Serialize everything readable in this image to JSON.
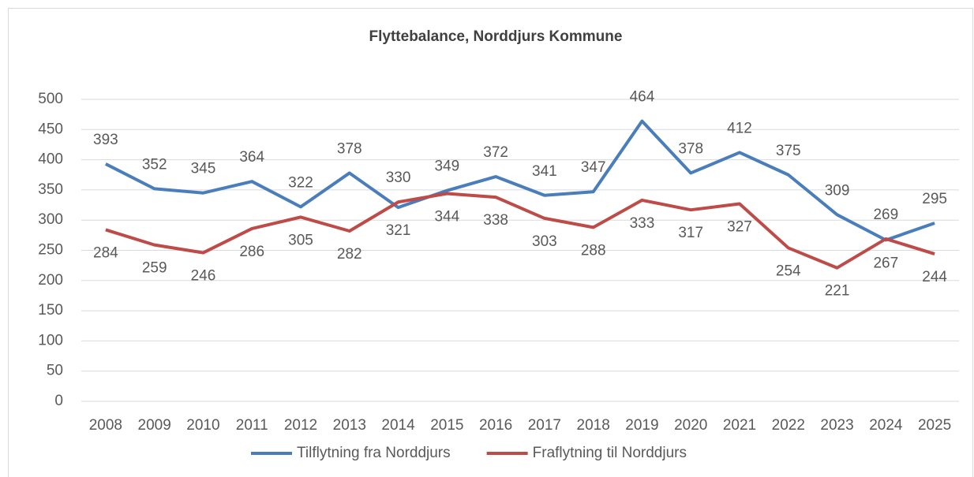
{
  "chart_data": {
    "type": "line",
    "title": "Flyttebalance, Norddjurs Kommune",
    "categories": [
      "2008",
      "2009",
      "2010",
      "2011",
      "2012",
      "2013",
      "2014",
      "2015",
      "2016",
      "2017",
      "2018",
      "2019",
      "2020",
      "2021",
      "2022",
      "2023",
      "2024",
      "2025"
    ],
    "series": [
      {
        "name": "Tilflytning fra Norddjurs",
        "color": "#4a7ebb",
        "values": [
          393,
          352,
          345,
          364,
          322,
          378,
          321,
          349,
          372,
          341,
          347,
          464,
          378,
          412,
          375,
          309,
          267,
          295
        ]
      },
      {
        "name": "Fraflytning til Norddjurs",
        "color": "#be4b48",
        "values": [
          284,
          259,
          246,
          286,
          305,
          282,
          330,
          344,
          338,
          303,
          288,
          333,
          317,
          327,
          254,
          221,
          269,
          244
        ]
      }
    ],
    "ylim": [
      0,
      500
    ],
    "yticks": [
      0,
      50,
      100,
      150,
      200,
      250,
      300,
      350,
      400,
      450,
      500
    ],
    "grid": true,
    "legend": "bottom"
  }
}
